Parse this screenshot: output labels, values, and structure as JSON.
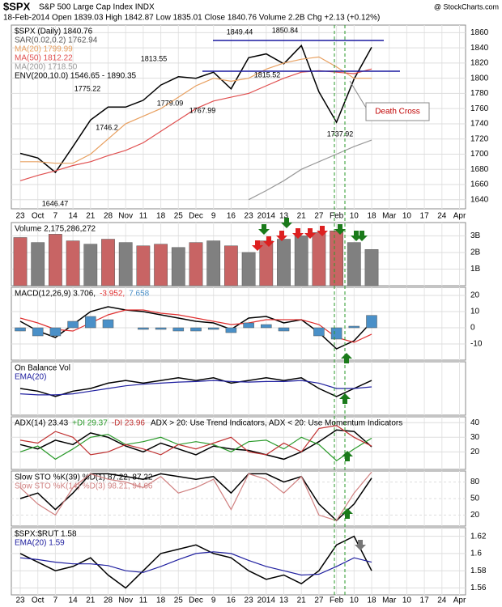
{
  "header": {
    "title": "$SPX",
    "subtitle": "S&P 500 Large Cap Index INDX",
    "info": "18-Feb-2014   Open 1839.03  High 1842.87  Low 1835.01  Close 1840.76  Volume 2.2B  Chg +2.13 (+0.12%)",
    "credit": "@ StockCharts.com",
    "annotation": "Death Cross"
  },
  "chart_data": [
    {
      "type": "line",
      "legend": "vertical",
      "categories": [
        "23",
        "Oct",
        "7",
        "14",
        "21",
        "28",
        "Nov",
        "11",
        "18",
        "25",
        "Dec",
        "9",
        "16",
        "23",
        "2014",
        "13",
        "21",
        "27",
        "Feb",
        "10",
        "18",
        "Mar",
        "10",
        "17",
        "24",
        "Apr"
      ],
      "ylim": [
        1628,
        1870
      ],
      "yticks": [
        1640,
        1660,
        1680,
        1700,
        1720,
        1740,
        1760,
        1780,
        1800,
        1820,
        1840,
        1860
      ],
      "price_labels": [
        1646.47,
        1746.2,
        1775.22,
        1779.09,
        1813.55,
        1767.99,
        1849.44,
        1850.84,
        1815.52,
        1737.92
      ],
      "series": [
        {
          "name": "$SPX (Daily) 1840.76",
          "color": "#000000",
          "values": [
            1701,
            1695,
            1676,
            1710,
            1745,
            1762,
            1762,
            1771,
            1791,
            1802,
            1800,
            1808,
            1786,
            1827,
            1832,
            1819,
            1843,
            1782,
            1742,
            1799,
            1840.76,
            null,
            null,
            null,
            null,
            null
          ]
        },
        {
          "name": "SAR(0.02,0.2) 1762.94",
          "color": "#555555"
        },
        {
          "name": "MA(20) 1799.99",
          "color": "#e8a060",
          "values": [
            1690,
            1690,
            1688,
            1688,
            1700,
            1720,
            1740,
            1750,
            1760,
            1775,
            1790,
            1800,
            1796,
            1800,
            1812,
            1820,
            1825,
            1828,
            1815,
            1800,
            1799.99,
            null,
            null,
            null,
            null,
            null
          ]
        },
        {
          "name": "MA(50) 1812.22",
          "color": "#e05050",
          "values": [
            1665,
            1672,
            1678,
            1685,
            1690,
            1698,
            1705,
            1715,
            1730,
            1745,
            1760,
            1770,
            1775,
            1780,
            1790,
            1800,
            1808,
            1810,
            1808,
            1806,
            1812.22,
            null,
            null,
            null,
            null,
            null
          ]
        },
        {
          "name": "MA(200) 1718.50",
          "color": "#999999",
          "values": [
            null,
            null,
            null,
            null,
            null,
            null,
            null,
            null,
            null,
            null,
            null,
            null,
            null,
            1640,
            1652,
            1665,
            1680,
            1690,
            1700,
            1710,
            1718.5,
            null,
            null,
            null,
            null,
            null
          ]
        },
        {
          "name": "ENV(200,10.0) 1546.65 - 1890.35",
          "color": "#000000"
        }
      ]
    },
    {
      "type": "bar",
      "title": "Volume 2,175,286,272",
      "ylim": [
        0,
        3.8
      ],
      "yticks": [
        {
          "value": 1,
          "label": "1B"
        },
        {
          "value": 2,
          "label": "2B"
        },
        {
          "value": 3,
          "label": "3B"
        }
      ],
      "series": [
        {
          "colors": [
            "#c86464",
            "#808080",
            "#c86464",
            "#c86464",
            "#808080",
            "#c86464",
            "#808080",
            "#c86464",
            "#c86464",
            "#808080",
            "#c86464",
            "#808080",
            "#c86464",
            "#808080",
            "#c86464",
            "#808080",
            "#808080",
            "#c86464",
            "#c86464",
            "#808080",
            "#808080"
          ],
          "values": [
            2.9,
            2.6,
            3.1,
            2.7,
            2.5,
            2.8,
            2.6,
            2.4,
            2.5,
            2.3,
            2.6,
            2.7,
            2.4,
            2.0,
            2.7,
            2.8,
            3.0,
            3.2,
            3.3,
            2.6,
            2.18,
            null,
            null,
            null,
            null,
            null
          ]
        }
      ]
    },
    {
      "type": "line",
      "legend": "inline",
      "ylim": [
        -20,
        25
      ],
      "yticks": [
        -10,
        0,
        10,
        20
      ],
      "series": [
        {
          "name": "MACD(12,26,9) 3.706,",
          "color": "#000000",
          "values": [
            4,
            -2,
            -6,
            2,
            10,
            13,
            11,
            10,
            8,
            6,
            4,
            3,
            -1,
            6,
            7,
            3,
            5,
            -3,
            -13,
            -8,
            3.706,
            null,
            null,
            null,
            null,
            null
          ]
        },
        {
          "name": "-3.952,",
          "color": "#e03030",
          "values": [
            6,
            3,
            -1,
            -2,
            3,
            8,
            11,
            11,
            9,
            8,
            6,
            4,
            2,
            3,
            5,
            5,
            5,
            2,
            -6,
            -9,
            -3.952,
            null,
            null,
            null,
            null,
            null
          ]
        },
        {
          "name": "7.658",
          "color": "#4a90c8",
          "type": "bar",
          "values": [
            -2,
            -5,
            -5,
            4,
            7,
            5,
            0,
            -1,
            -1,
            -2,
            -2,
            -1,
            -3,
            3,
            2,
            -2,
            0,
            -5,
            -7,
            1,
            7.658,
            null,
            null,
            null,
            null,
            null
          ]
        }
      ]
    },
    {
      "type": "line",
      "legend": "vertical",
      "ylim": [
        0,
        10
      ],
      "series": [
        {
          "name": "On Balance Vol",
          "color": "#000000",
          "values": [
            5,
            4.5,
            3.5,
            4.5,
            5,
            6,
            6.5,
            6,
            6.5,
            7,
            6.5,
            7,
            6,
            6.5,
            7,
            6.5,
            7,
            5,
            3.5,
            5,
            6.5,
            null,
            null,
            null,
            null,
            null
          ]
        },
        {
          "name": "EMA(20)",
          "color": "#2020a0",
          "values": [
            4,
            3.8,
            3.8,
            4,
            4.5,
            5,
            5.5,
            5.8,
            6,
            6.2,
            6.3,
            6.5,
            6.3,
            6.2,
            6.3,
            6.3,
            6.5,
            6,
            5,
            5,
            5.3,
            null,
            null,
            null,
            null,
            null
          ]
        }
      ]
    },
    {
      "type": "line",
      "legend": "inline",
      "note": "ADX > 20: Use Trend Indicators, ADX < 20: Use Momentum Indicators",
      "ylim": [
        8,
        44
      ],
      "yticks": [
        20,
        30,
        40
      ],
      "series": [
        {
          "name": "ADX(14) 23.43",
          "color": "#000000",
          "values": [
            25,
            22,
            28,
            25,
            33,
            30,
            24,
            20,
            26,
            22,
            18,
            24,
            22,
            21,
            18,
            15,
            20,
            27,
            35,
            34,
            23.43,
            null,
            null,
            null,
            null,
            null
          ]
        },
        {
          "name": "+DI 29.37",
          "color": "#2a9a2a",
          "values": [
            20,
            24,
            15,
            22,
            30,
            32,
            25,
            27,
            30,
            25,
            27,
            25,
            20,
            27,
            28,
            22,
            30,
            25,
            14,
            22,
            29.37,
            null,
            null,
            null,
            null,
            null
          ]
        },
        {
          "name": "-DI 23.96",
          "color": "#c03030",
          "values": [
            28,
            26,
            34,
            30,
            18,
            20,
            25,
            22,
            18,
            25,
            22,
            26,
            30,
            20,
            18,
            26,
            20,
            36,
            38,
            30,
            23.96,
            null,
            null,
            null,
            null,
            null
          ]
        }
      ]
    },
    {
      "type": "line",
      "legend": "vertical",
      "ylim": [
        0,
        100
      ],
      "yticks": [
        20,
        50,
        80
      ],
      "series": [
        {
          "name": "Slow STO %K(39) %D(1) 87.22, 87.22",
          "color": "#000000",
          "values": [
            50,
            60,
            30,
            60,
            95,
            95,
            90,
            85,
            95,
            90,
            85,
            90,
            60,
            95,
            95,
            80,
            90,
            40,
            10,
            40,
            87.22,
            null,
            null,
            null,
            null,
            null
          ]
        },
        {
          "name": "Slow STO %K(14) %D(3) 98.21, 94.66",
          "color": "#d08080",
          "values": [
            70,
            40,
            20,
            70,
            95,
            85,
            80,
            70,
            90,
            60,
            70,
            85,
            30,
            95,
            85,
            60,
            90,
            20,
            10,
            60,
            98.21,
            null,
            null,
            null,
            null,
            null
          ]
        }
      ]
    },
    {
      "type": "line",
      "legend": "vertical",
      "categories": [
        "23",
        "Oct",
        "7",
        "14",
        "21",
        "28",
        "Nov",
        "11",
        "18",
        "25",
        "Dec",
        "9",
        "16",
        "23",
        "2014",
        "13",
        "21",
        "27",
        "Feb",
        "10",
        "18",
        "Mar",
        "10",
        "17",
        "24",
        "Apr"
      ],
      "ylim": [
        1.552,
        1.63
      ],
      "yticks": [
        1.56,
        1.58,
        1.6,
        1.62
      ],
      "series": [
        {
          "name": "$SPX:$RUT 1.58",
          "color": "#000000",
          "values": [
            1.6,
            1.59,
            1.58,
            1.585,
            1.595,
            1.575,
            1.56,
            1.58,
            1.6,
            1.605,
            1.61,
            1.6,
            1.595,
            1.58,
            1.57,
            1.575,
            1.565,
            1.58,
            1.61,
            1.62,
            1.58,
            null,
            null,
            null,
            null,
            null
          ]
        },
        {
          "name": "EMA(20) 1.59",
          "color": "#2020a0",
          "values": [
            1.595,
            1.593,
            1.59,
            1.588,
            1.588,
            1.586,
            1.58,
            1.578,
            1.585,
            1.593,
            1.6,
            1.602,
            1.6,
            1.592,
            1.585,
            1.58,
            1.575,
            1.576,
            1.585,
            1.595,
            1.59,
            null,
            null,
            null,
            null,
            null
          ]
        }
      ]
    }
  ]
}
